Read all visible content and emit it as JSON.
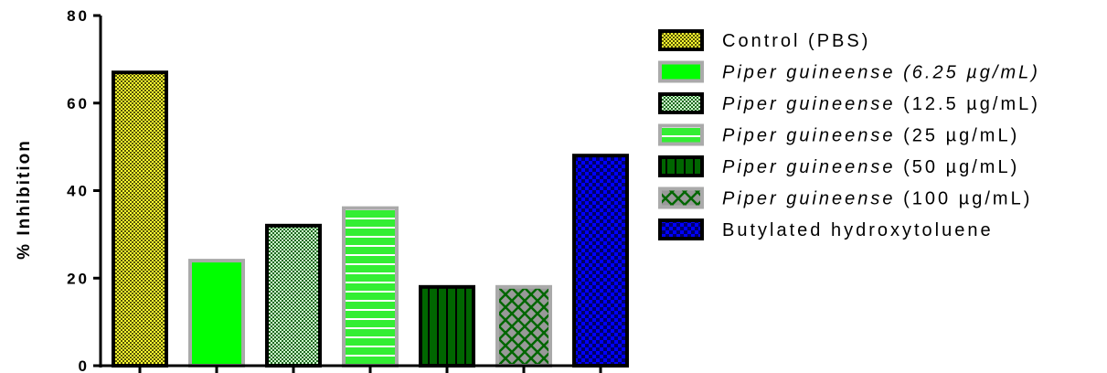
{
  "chart_data": {
    "type": "bar",
    "title": "",
    "xlabel": "",
    "ylabel": "% Inhibition",
    "ylim": [
      0,
      80
    ],
    "yticks": [
      "0",
      "20",
      "40",
      "60",
      "80"
    ],
    "legend_position": "right",
    "series": [
      {
        "name": "Control (PBS)",
        "name_parts": [
          {
            "text": "Control (PBS)",
            "italic": false
          }
        ],
        "value": 67,
        "fill": "#ffff33",
        "pattern": "fine-checker-yellow",
        "edge": "#000000"
      },
      {
        "name": "Piper guineense (6.25 µg/mL)",
        "name_parts": [
          {
            "text": "Piper guineense (6.25 µg/mL)",
            "italic": true
          }
        ],
        "value": 24,
        "fill": "#00ff00",
        "pattern": "solid-green",
        "edge": "#aaaaaa"
      },
      {
        "name": "Piper guineense (12.5 µg/mL)",
        "name_parts": [
          {
            "text": "Piper guineense",
            "italic": true
          },
          {
            "text": " (12.5 µg/mL)",
            "italic": false
          }
        ],
        "value": 32,
        "fill": "#99ff99",
        "pattern": "fine-checker-green",
        "edge": "#000000"
      },
      {
        "name": "Piper guineense (25 µg/mL)",
        "name_parts": [
          {
            "text": "Piper guineense",
            "italic": true
          },
          {
            "text": " (25 µg/mL)",
            "italic": false
          }
        ],
        "value": 36,
        "fill": "#33cc33",
        "pattern": "horizontal-stripes",
        "edge": "#aaaaaa"
      },
      {
        "name": "Piper guineense (50 µg/mL)",
        "name_parts": [
          {
            "text": "Piper guineense",
            "italic": true
          },
          {
            "text": " (50 µg/mL)",
            "italic": false
          }
        ],
        "value": 18,
        "fill": "#006600",
        "pattern": "vertical-stripes",
        "edge": "#000000"
      },
      {
        "name": "Piper guineense (100 µg/mL)",
        "name_parts": [
          {
            "text": "Piper guineense",
            "italic": true
          },
          {
            "text": " (100 µg/mL)",
            "italic": false
          }
        ],
        "value": 18,
        "fill": "#999999",
        "pattern": "diamond-lattice",
        "edge": "#aaaaaa"
      },
      {
        "name": "Butylated hydroxytoluene",
        "name_parts": [
          {
            "text": "Butylated hydroxytoluene",
            "italic": false
          }
        ],
        "value": 48,
        "fill": "#0000ff",
        "pattern": "checker-blue",
        "edge": "#000000"
      }
    ]
  }
}
